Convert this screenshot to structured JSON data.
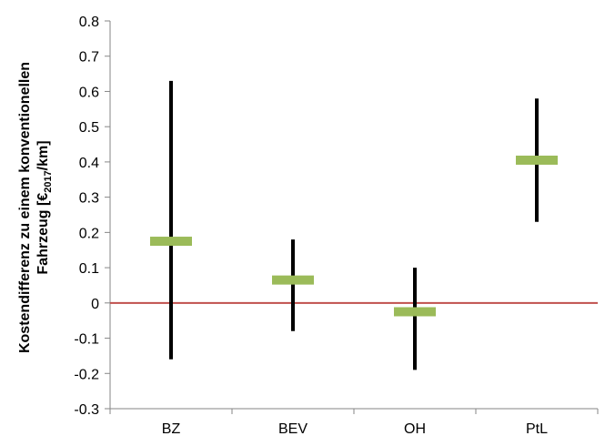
{
  "chart_data": {
    "type": "range",
    "categories": [
      "BZ",
      "BEV",
      "OH",
      "PtL"
    ],
    "series": [
      {
        "values": [
          0.175,
          0.065,
          -0.025,
          0.405
        ]
      }
    ],
    "ranges": [
      {
        "low": -0.16,
        "high": 0.63
      },
      {
        "low": -0.08,
        "high": 0.18
      },
      {
        "low": -0.19,
        "high": 0.1
      },
      {
        "low": 0.23,
        "high": 0.58
      }
    ],
    "title": "",
    "xlabel": "",
    "ylabel_line1": "Kostendifferenz zu einem konventionellen",
    "ylabel_line2_prefix": "Fahrzeug [€",
    "ylabel_line2_sub": "2017",
    "ylabel_line2_suffix": "/km]",
    "ylim": [
      -0.3,
      0.8
    ],
    "yticks": [
      -0.3,
      -0.2,
      -0.1,
      0,
      0.1,
      0.2,
      0.3,
      0.4,
      0.5,
      0.6,
      0.7,
      0.8
    ],
    "ytick_labels": [
      "-0.3",
      "-0.2",
      "-0.1",
      "0",
      "0.1",
      "0.2",
      "0.3",
      "0.4",
      "0.5",
      "0.6",
      "0.7",
      "0.8"
    ],
    "grid": false,
    "legend": "none",
    "colors": {
      "marker": "#9bbb59",
      "range": "#000000",
      "zero_line": "#c0504d",
      "axis": "#868686",
      "text": "#000000"
    }
  }
}
